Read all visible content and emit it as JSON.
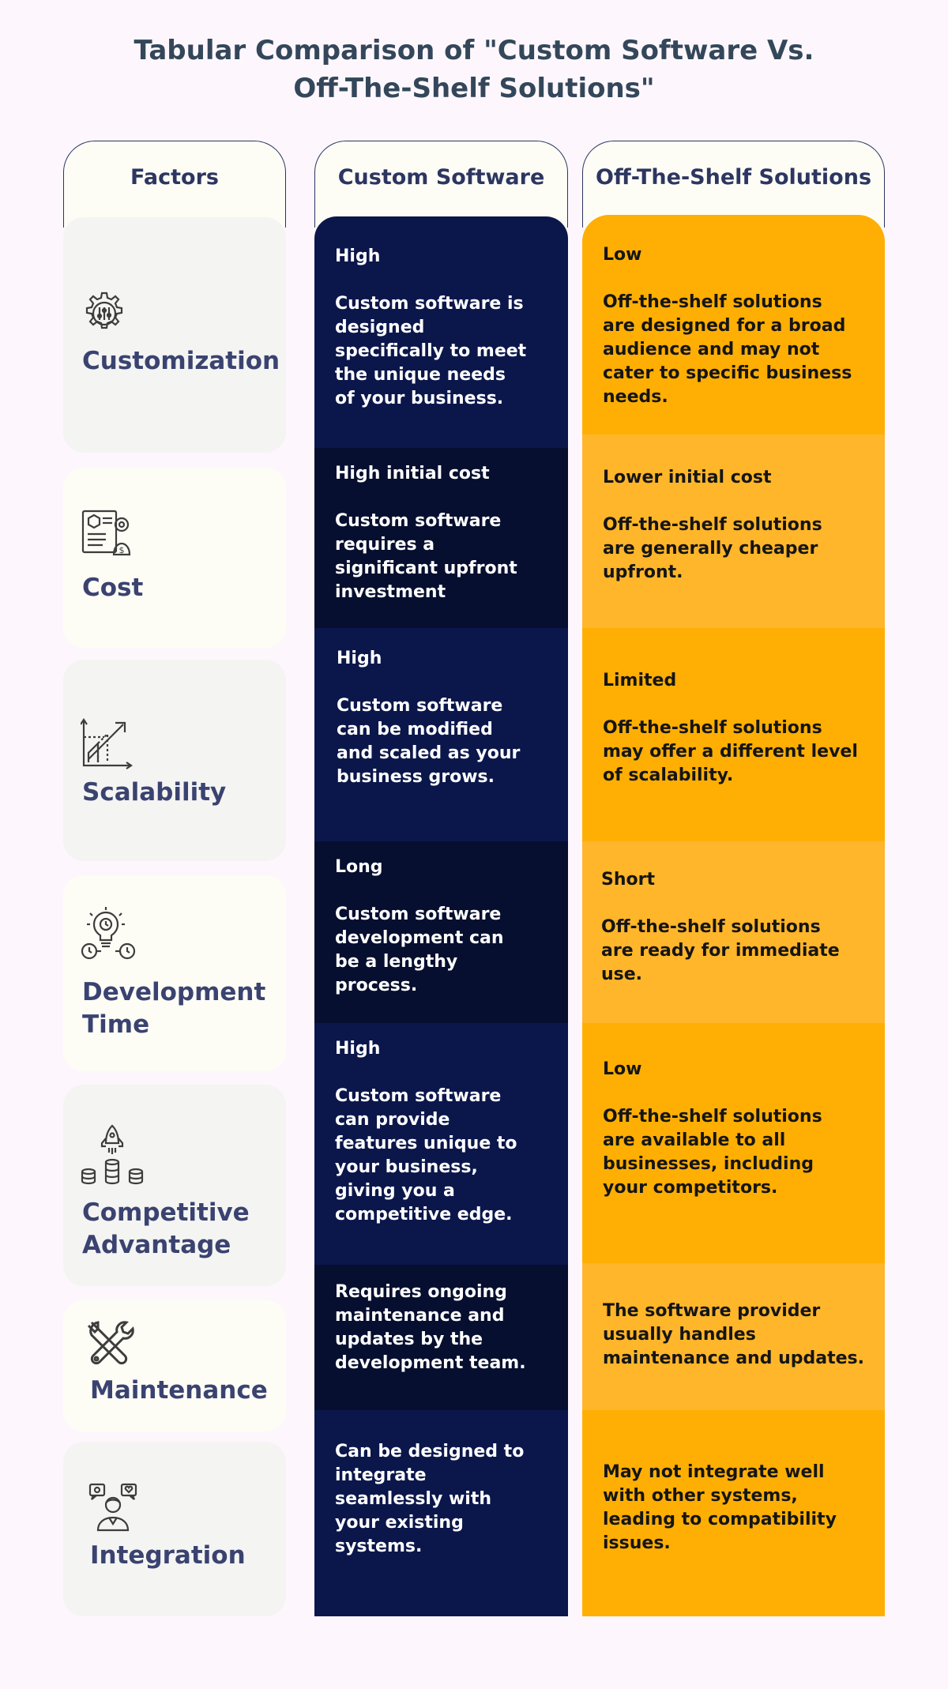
{
  "title": {
    "line1": "Tabular Comparison of \"Custom Software Vs.",
    "line2": "Off-The-Shelf Solutions\""
  },
  "headers": {
    "factors": "Factors",
    "custom": "Custom Software",
    "ots": "Off-The-Shelf Solutions"
  },
  "rows": [
    {
      "factor_icon": "gear-dial-icon",
      "factor_lines": [
        "Customization"
      ],
      "custom_label": "High",
      "custom_desc": [
        "Custom software is",
        "designed",
        "specifically to meet",
        "the unique needs",
        "of your business."
      ],
      "ots_label": "Low",
      "ots_desc": [
        "Off-the-shelf solutions",
        "are designed for a broad",
        "audience and may not",
        "cater to specific business",
        "needs."
      ]
    },
    {
      "factor_icon": "cost-document-icon",
      "factor_lines": [
        "Cost"
      ],
      "custom_label": "High initial cost",
      "custom_desc": [
        "Custom software",
        "requires a",
        "significant upfront",
        "investment"
      ],
      "ots_label": "Lower initial cost",
      "ots_desc": [
        "Off-the-shelf solutions",
        "are generally cheaper",
        "upfront."
      ]
    },
    {
      "factor_icon": "growth-chart-icon",
      "factor_lines": [
        "Scalability"
      ],
      "custom_label": "High",
      "custom_desc": [
        "Custom software",
        "can be modified",
        "and scaled as your",
        "business grows."
      ],
      "ots_label": "Limited",
      "ots_desc": [
        "Off-the-shelf solutions",
        "may offer a different level",
        "of scalability."
      ]
    },
    {
      "factor_icon": "lightbulb-clock-icon",
      "factor_lines": [
        "Development",
        "Time"
      ],
      "custom_label": "Long",
      "custom_desc": [
        "Custom software",
        "development can",
        "be a lengthy",
        "process."
      ],
      "ots_label": "Short",
      "ots_desc": [
        "Off-the-shelf solutions",
        "are ready for immediate",
        "use."
      ]
    },
    {
      "factor_icon": "rocket-coins-icon",
      "factor_lines": [
        "Competitive",
        "Advantage"
      ],
      "custom_label": "High",
      "custom_desc": [
        "Custom software",
        "can provide",
        "features unique to",
        "your business,",
        "giving you a",
        "competitive edge."
      ],
      "ots_label": "Low",
      "ots_desc": [
        "Off-the-shelf solutions",
        "are available to all",
        "businesses, including",
        "your competitors."
      ]
    },
    {
      "factor_icon": "tools-icon",
      "factor_lines": [
        "Maintenance"
      ],
      "custom_label": "",
      "custom_desc": [
        "Requires ongoing",
        "maintenance and",
        "updates by the",
        "development team."
      ],
      "ots_label": "",
      "ots_desc": [
        "The software provider",
        "usually handles",
        "maintenance and updates."
      ]
    },
    {
      "factor_icon": "integration-person-icon",
      "factor_lines": [
        "Integration"
      ],
      "custom_label": "",
      "custom_desc": [
        "Can be designed to",
        "integrate",
        "seamlessly with",
        "your existing",
        "systems."
      ],
      "ots_label": "",
      "ots_desc": [
        "May not integrate well",
        "with other systems,",
        "leading to compatibility",
        "issues."
      ]
    }
  ],
  "colors": {
    "navy": "#0b174b",
    "navy_dark": "#060f2f",
    "orange": "#ffaf03",
    "orange_light": "#ffb62a",
    "factor_text": "#3a4370",
    "title_text": "#34475a"
  }
}
